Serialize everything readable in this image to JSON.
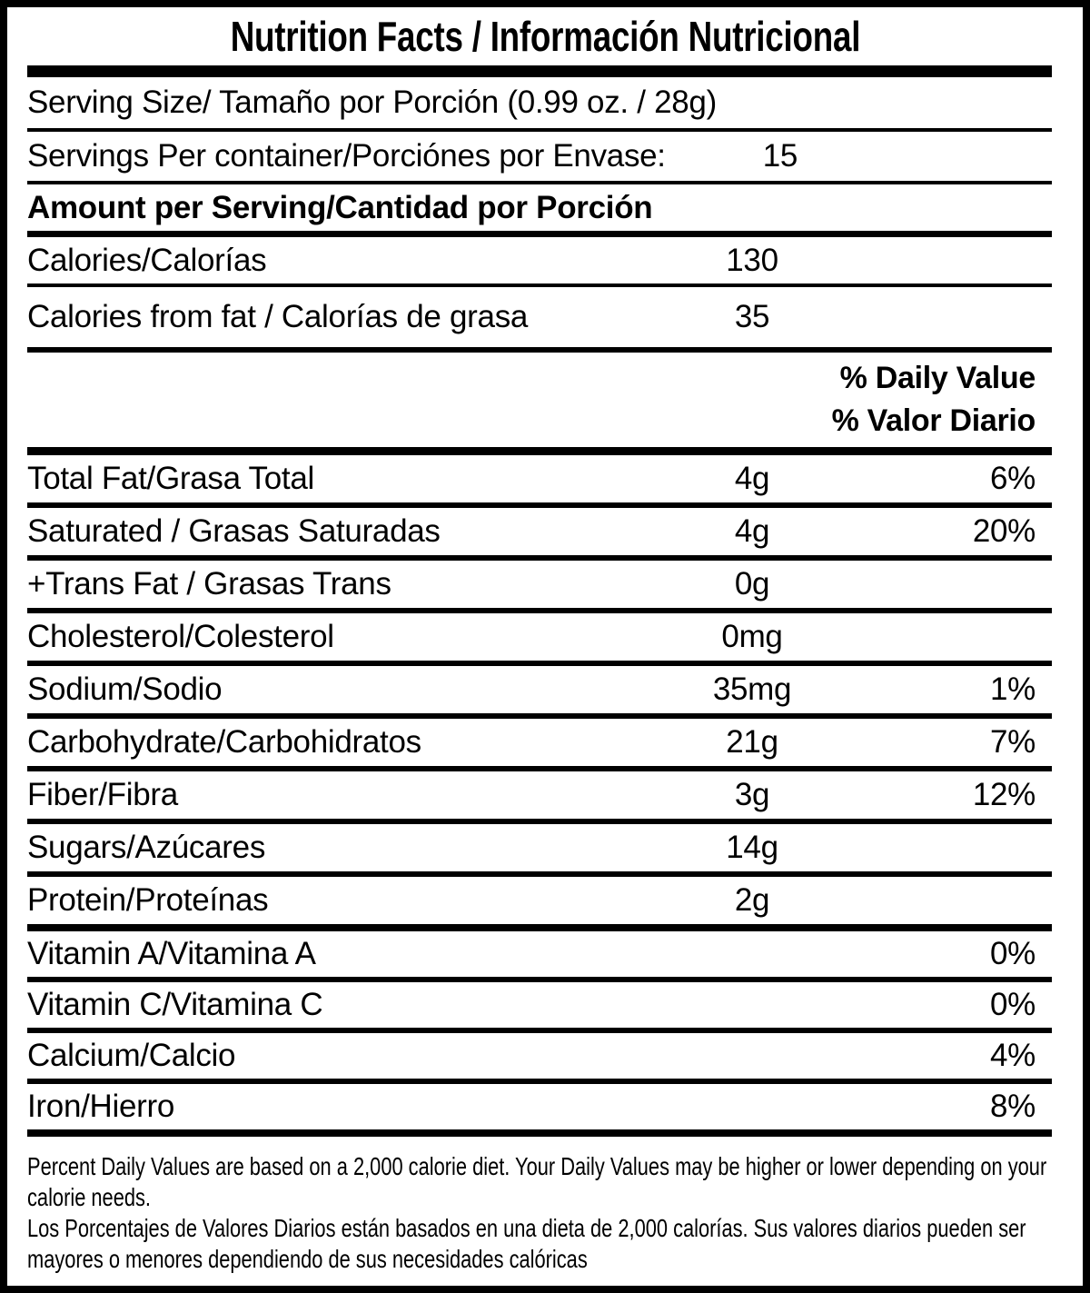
{
  "title": "Nutrition Facts / Información Nutricional",
  "colors": {
    "ink": "#000000",
    "paper": "#ffffff"
  },
  "serving": {
    "serving_size_label": "Serving Size/ Tamaño por Porción  (0.99 oz. / 28g)",
    "servings_per_container_label": "Servings Per container/Porciónes por Envase:",
    "servings_per_container_value": "15",
    "amount_per_serving_label": "Amount per Serving/Cantidad por Porción"
  },
  "calories": {
    "label": "Calories/Calorías",
    "value": "130"
  },
  "calories_from_fat": {
    "label": "Calories from fat / Calorías de grasa",
    "value": "35"
  },
  "daily_value_header": {
    "en": "% Daily Value",
    "es": "% Valor Diario"
  },
  "nutrients": [
    {
      "label": "Total Fat/Grasa Total",
      "amount": "4g",
      "percent": "6%"
    },
    {
      "label": "Saturated / Grasas Saturadas",
      "amount": "4g",
      "percent": "20%"
    },
    {
      "label": "+Trans Fat / Grasas Trans",
      "amount": "0g",
      "percent": ""
    },
    {
      "label": "Cholesterol/Colesterol",
      "amount": "0mg",
      "percent": ""
    },
    {
      "label": "Sodium/Sodio",
      "amount": "35mg",
      "percent": "1%"
    },
    {
      "label": "Carbohydrate/Carbohidratos",
      "amount": "21g",
      "percent": "7%"
    },
    {
      "label": "Fiber/Fibra",
      "amount": "3g",
      "percent": "12%"
    },
    {
      "label": "Sugars/Azúcares",
      "amount": "14g",
      "percent": ""
    },
    {
      "label": "Protein/Proteínas",
      "amount": "2g",
      "percent": ""
    }
  ],
  "micronutrients": [
    {
      "label": "Vitamin A/Vitamina A",
      "percent": "0%"
    },
    {
      "label": "Vitamin C/Vitamina C",
      "percent": "0%"
    },
    {
      "label": "Calcium/Calcio",
      "percent": "4%"
    },
    {
      "label": "Iron/Hierro",
      "percent": "8%"
    }
  ],
  "footnotes": {
    "en": "Percent Daily Values are based on a 2,000 calorie diet. Your Daily Values may be higher or lower depending on your calorie needs.",
    "es": "Los Porcentajes de Valores Diarios están basados en una dieta de 2,000 calorías. Sus valores diarios pueden ser mayores o menores dependiendo de sus necesidades calóricas"
  }
}
